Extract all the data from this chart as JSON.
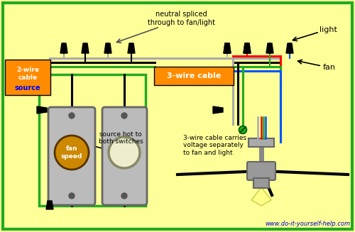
{
  "bg_color": "#FFFF99",
  "border_color": "#22AA22",
  "website": "www.do-it-yourself-help.com",
  "website_color": "#0000CC",
  "label_2wire_bg": "#FF8C00",
  "label_2wire_text": "2-wire\ncable",
  "label_2wire_sub": "source",
  "label_2wire_sub_color": "#0000FF",
  "label_3wire_bg": "#FF8C00",
  "label_3wire_text": "3-wire cable",
  "note_neutral": "neutral spliced\nthrough to fan/light",
  "note_source_hot": "source hot to\nboth switches",
  "note_3wire_carries": "3-wire cable carries\nvoltage separately\nto fan and light",
  "label_light": "light",
  "label_fan": "fan",
  "wire_black": "#000000",
  "wire_white": "#AAAAAA",
  "wire_green": "#22AA22",
  "wire_red": "#FF0000",
  "wire_blue": "#0055FF",
  "switch_bg": "#AAAAAA",
  "switch_knob_fan": "#CC8800",
  "switch_knob_light": "#EEEECC"
}
